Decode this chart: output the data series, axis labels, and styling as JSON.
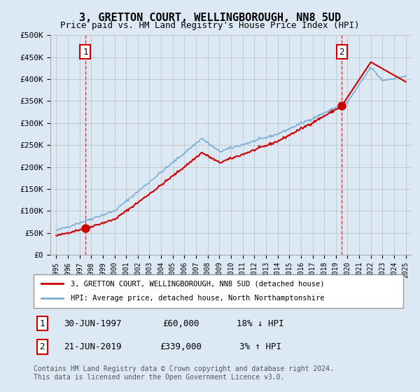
{
  "title": "3, GRETTON COURT, WELLINGBOROUGH, NN8 5UD",
  "subtitle": "Price paid vs. HM Land Registry's House Price Index (HPI)",
  "background_color": "#dce9f5",
  "plot_bg_color": "#dce9f5",
  "ylim": [
    0,
    500000
  ],
  "yticks": [
    0,
    50000,
    100000,
    150000,
    200000,
    250000,
    300000,
    350000,
    400000,
    450000,
    500000
  ],
  "ytick_labels": [
    "£0",
    "£50K",
    "£100K",
    "£150K",
    "£200K",
    "£250K",
    "£300K",
    "£350K",
    "£400K",
    "£450K",
    "£500K"
  ],
  "transaction1_year": 1997.5,
  "transaction1_price": 60000,
  "transaction1_label": "1",
  "transaction1_date": "30-JUN-1997",
  "transaction1_price_str": "£60,000",
  "transaction1_hpi_diff": "18% ↓ HPI",
  "transaction2_year": 2019.5,
  "transaction2_price": 339000,
  "transaction2_label": "2",
  "transaction2_date": "21-JUN-2019",
  "transaction2_price_str": "£339,000",
  "transaction2_hpi_diff": "3% ↑ HPI",
  "legend_line1": "3, GRETTON COURT, WELLINGBOROUGH, NN8 5UD (detached house)",
  "legend_line2": "HPI: Average price, detached house, North Northamptonshire",
  "footnote": "Contains HM Land Registry data © Crown copyright and database right 2024.\nThis data is licensed under the Open Government Licence v3.0.",
  "line_red": "#cc0000",
  "line_blue": "#7aafd4",
  "marker_red": "#cc0000",
  "box_color": "#cc0000"
}
